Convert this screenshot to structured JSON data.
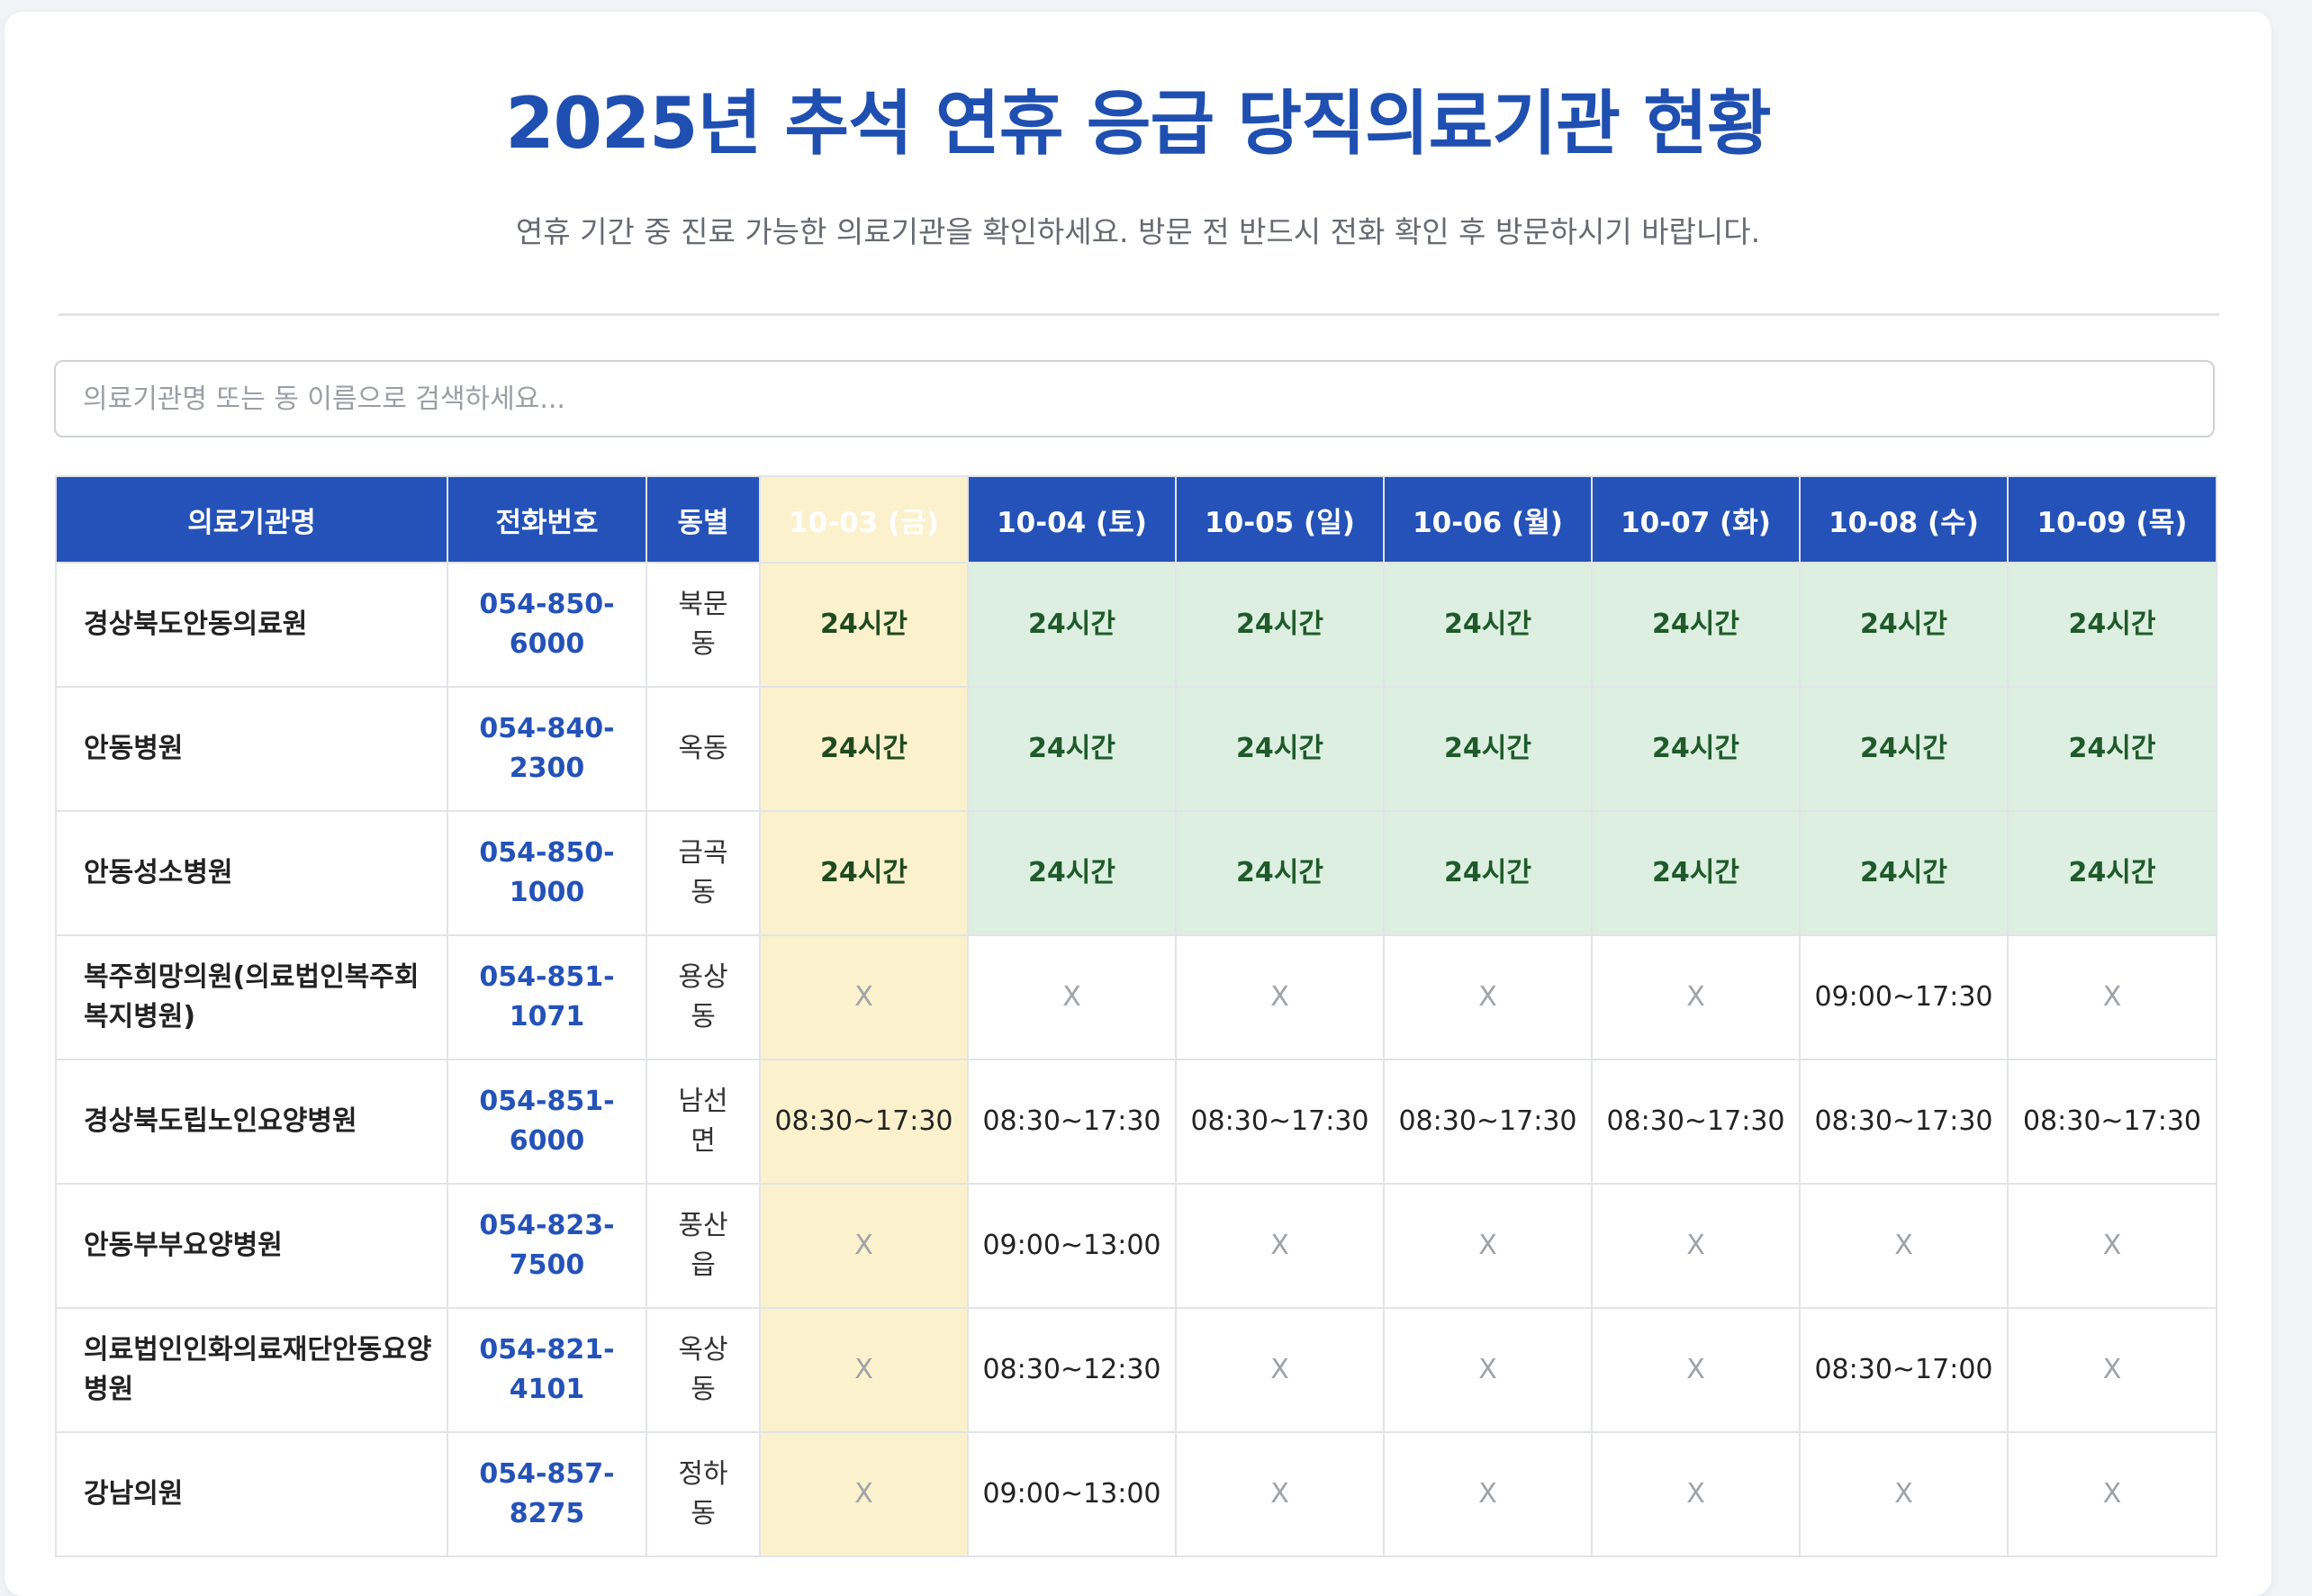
{
  "page": {
    "title": "2025년 추석 연휴 응급 당직의료기관 현황",
    "subtitle": "연휴 기간 중 진료 가능한 의료기관을 확인하세요. 방문 전 반드시 전화 확인 후 방문하시기 바랍니다."
  },
  "search": {
    "placeholder": "의료기관명 또는 동 이름으로 검색하세요..."
  },
  "colors": {
    "title": "#1f4fb0",
    "header_bg": "#2452b8",
    "today_bg": "#fbf1cc",
    "full_day_bg": "#dcefe0",
    "full_day_text": "#1f5a2a",
    "phone": "#2452b8",
    "closed": "#9ea3aa"
  },
  "table": {
    "headers": {
      "name": "의료기관명",
      "phone": "전화번호",
      "dong": "동별",
      "dates": [
        "10-03 (금)",
        "10-04 (토)",
        "10-05 (일)",
        "10-06 (월)",
        "10-07 (화)",
        "10-08 (수)",
        "10-09 (목)"
      ]
    },
    "rows": [
      {
        "name": "경상북도안동의료원",
        "phone": "054-850-6000",
        "dong": "북문동",
        "days": [
          "24시간",
          "24시간",
          "24시간",
          "24시간",
          "24시간",
          "24시간",
          "24시간"
        ]
      },
      {
        "name": "안동병원",
        "phone": "054-840-2300",
        "dong": "옥동",
        "days": [
          "24시간",
          "24시간",
          "24시간",
          "24시간",
          "24시간",
          "24시간",
          "24시간"
        ]
      },
      {
        "name": "안동성소병원",
        "phone": "054-850-1000",
        "dong": "금곡동",
        "days": [
          "24시간",
          "24시간",
          "24시간",
          "24시간",
          "24시간",
          "24시간",
          "24시간"
        ]
      },
      {
        "name": "복주희망의원(의료법인복주회복지병원)",
        "phone": "054-851-1071",
        "dong": "용상동",
        "days": [
          "X",
          "X",
          "X",
          "X",
          "X",
          "09:00~17:30",
          "X"
        ]
      },
      {
        "name": "경상북도립노인요양병원",
        "phone": "054-851-6000",
        "dong": "남선면",
        "days": [
          "08:30~17:30",
          "08:30~17:30",
          "08:30~17:30",
          "08:30~17:30",
          "08:30~17:30",
          "08:30~17:30",
          "08:30~17:30"
        ]
      },
      {
        "name": "안동부부요양병원",
        "phone": "054-823-7500",
        "dong": "풍산읍",
        "days": [
          "X",
          "09:00~13:00",
          "X",
          "X",
          "X",
          "X",
          "X"
        ]
      },
      {
        "name": "의료법인인화의료재단안동요양병원",
        "phone": "054-821-4101",
        "dong": "옥상동",
        "days": [
          "X",
          "08:30~12:30",
          "X",
          "X",
          "X",
          "08:30~17:00",
          "X"
        ]
      },
      {
        "name": "강남의원",
        "phone": "054-857-8275",
        "dong": "정하동",
        "days": [
          "X",
          "09:00~13:00",
          "X",
          "X",
          "X",
          "X",
          "X"
        ]
      }
    ]
  }
}
